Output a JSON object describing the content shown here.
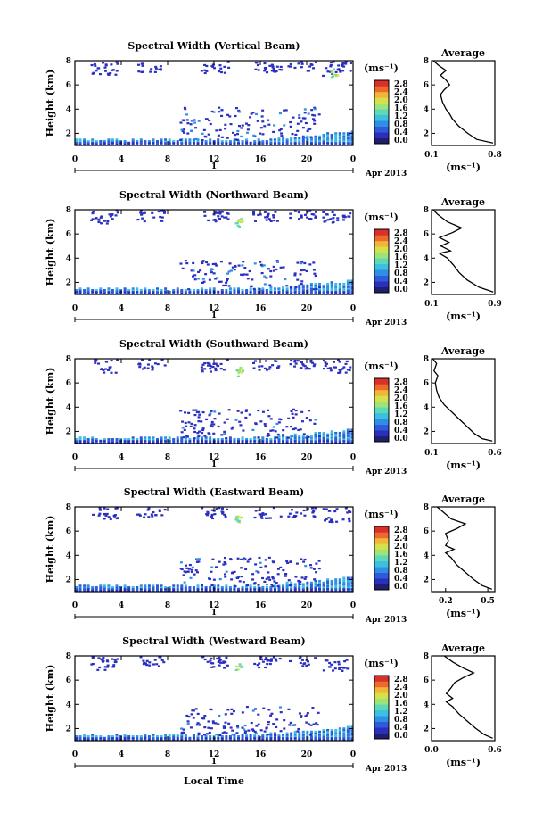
{
  "figure": {
    "xlabel": "Local Time",
    "day_label": "1",
    "month_label": "Apr 2013",
    "ylabel": "Height (km)",
    "unit_label": "(ms⁻¹)",
    "avg_unit_label": "(ms⁻¹)",
    "avg_title": "Average",
    "x_ticks": [
      "0",
      "4",
      "8",
      "12",
      "16",
      "20",
      "0"
    ],
    "y_ticks": [
      "2",
      "4",
      "6",
      "8"
    ],
    "colorbar_ticks": [
      "0.0",
      "0.4",
      "0.8",
      "1.2",
      "1.6",
      "2.0",
      "2.4",
      "2.8"
    ],
    "colorbar_colors": [
      "#1f1f6e",
      "#2b2fbf",
      "#2e5bd8",
      "#2f8fe6",
      "#3cc0e0",
      "#5fd8b8",
      "#9be37a",
      "#d6e04a",
      "#f2b53a",
      "#ec6a2c",
      "#d9302a"
    ]
  },
  "chart_data": [
    {
      "type": "heatmap",
      "title": "Spectral Width (Vertical Beam)",
      "xlabel": "Local Time",
      "ylabel": "Height (km)",
      "xlim": [
        0,
        24
      ],
      "ylim": [
        1,
        8
      ],
      "colorbar": {
        "label": "(ms⁻¹)",
        "range": [
          0.0,
          2.8
        ]
      },
      "average": {
        "title": "Average",
        "xlabel": "(ms⁻¹)",
        "xticks": [
          "0.1",
          "0.8"
        ],
        "xlim": [
          0.1,
          0.8
        ],
        "ylim": [
          1,
          8
        ],
        "profile": [
          [
            0.78,
            1.2
          ],
          [
            0.6,
            1.5
          ],
          [
            0.5,
            2.0
          ],
          [
            0.4,
            2.6
          ],
          [
            0.33,
            3.2
          ],
          [
            0.3,
            3.6
          ],
          [
            0.26,
            4.0
          ],
          [
            0.22,
            4.6
          ],
          [
            0.2,
            5.2
          ],
          [
            0.24,
            5.6
          ],
          [
            0.3,
            6.0
          ],
          [
            0.26,
            6.4
          ],
          [
            0.2,
            6.8
          ],
          [
            0.26,
            7.2
          ],
          [
            0.18,
            7.6
          ],
          [
            0.12,
            8.0
          ]
        ]
      }
    },
    {
      "type": "heatmap",
      "title": "Spectral Width (Northward Beam)",
      "xlabel": "Local Time",
      "ylabel": "Height (km)",
      "xlim": [
        0,
        24
      ],
      "ylim": [
        1,
        8
      ],
      "colorbar": {
        "label": "(ms⁻¹)",
        "range": [
          0.0,
          2.8
        ]
      },
      "average": {
        "title": "Average",
        "xlabel": "(ms⁻¹)",
        "xticks": [
          "0.1",
          "0.9"
        ],
        "xlim": [
          0.1,
          0.9
        ],
        "ylim": [
          1,
          8
        ],
        "profile": [
          [
            0.88,
            1.2
          ],
          [
            0.7,
            1.6
          ],
          [
            0.55,
            2.2
          ],
          [
            0.45,
            2.8
          ],
          [
            0.38,
            3.4
          ],
          [
            0.3,
            4.0
          ],
          [
            0.2,
            4.4
          ],
          [
            0.34,
            4.6
          ],
          [
            0.22,
            5.0
          ],
          [
            0.32,
            5.3
          ],
          [
            0.2,
            5.7
          ],
          [
            0.36,
            6.1
          ],
          [
            0.48,
            6.5
          ],
          [
            0.3,
            7.0
          ],
          [
            0.18,
            7.6
          ],
          [
            0.12,
            8.0
          ]
        ]
      }
    },
    {
      "type": "heatmap",
      "title": "Spectral Width (Southward Beam)",
      "xlabel": "Local Time",
      "ylabel": "Height (km)",
      "xlim": [
        0,
        24
      ],
      "ylim": [
        1,
        8
      ],
      "colorbar": {
        "label": "(ms⁻¹)",
        "range": [
          0.0,
          2.8
        ]
      },
      "average": {
        "title": "Average",
        "xlabel": "(ms⁻¹)",
        "xticks": [
          "0.1",
          "0.6"
        ],
        "xlim": [
          0.1,
          0.6
        ],
        "ylim": [
          1,
          8
        ],
        "profile": [
          [
            0.58,
            1.2
          ],
          [
            0.5,
            1.4
          ],
          [
            0.44,
            1.8
          ],
          [
            0.38,
            2.4
          ],
          [
            0.32,
            3.0
          ],
          [
            0.26,
            3.6
          ],
          [
            0.2,
            4.2
          ],
          [
            0.16,
            4.8
          ],
          [
            0.14,
            5.4
          ],
          [
            0.13,
            6.0
          ],
          [
            0.15,
            6.6
          ],
          [
            0.12,
            7.0
          ],
          [
            0.14,
            7.6
          ],
          [
            0.11,
            8.0
          ]
        ]
      }
    },
    {
      "type": "heatmap",
      "title": "Spectral Width (Eastward Beam)",
      "xlabel": "Local Time",
      "ylabel": "Height (km)",
      "xlim": [
        0,
        24
      ],
      "ylim": [
        1,
        8
      ],
      "colorbar": {
        "label": "(ms⁻¹)",
        "range": [
          0.0,
          2.8
        ]
      },
      "average": {
        "title": "Average",
        "xlabel": "(ms⁻¹)",
        "xticks": [
          "0.2",
          "0.5"
        ],
        "xlim": [
          0.1,
          0.55
        ],
        "ylim": [
          1,
          8
        ],
        "profile": [
          [
            0.53,
            1.2
          ],
          [
            0.46,
            1.5
          ],
          [
            0.4,
            2.0
          ],
          [
            0.34,
            2.6
          ],
          [
            0.28,
            3.2
          ],
          [
            0.24,
            3.8
          ],
          [
            0.2,
            4.2
          ],
          [
            0.26,
            4.5
          ],
          [
            0.2,
            4.8
          ],
          [
            0.22,
            5.2
          ],
          [
            0.2,
            5.8
          ],
          [
            0.28,
            6.2
          ],
          [
            0.34,
            6.6
          ],
          [
            0.24,
            7.0
          ],
          [
            0.18,
            7.6
          ],
          [
            0.14,
            8.0
          ]
        ]
      }
    },
    {
      "type": "heatmap",
      "title": "Spectral Width (Westward Beam)",
      "xlabel": "Local Time",
      "ylabel": "Height (km)",
      "xlim": [
        0,
        24
      ],
      "ylim": [
        1,
        8
      ],
      "colorbar": {
        "label": "(ms⁻¹)",
        "range": [
          0.0,
          2.8
        ]
      },
      "average": {
        "title": "Average",
        "xlabel": "(ms⁻¹)",
        "xticks": [
          "0.0",
          "0.6"
        ],
        "xlim": [
          0.0,
          0.6
        ],
        "ylim": [
          1,
          8
        ],
        "profile": [
          [
            0.58,
            1.2
          ],
          [
            0.5,
            1.5
          ],
          [
            0.42,
            2.0
          ],
          [
            0.34,
            2.6
          ],
          [
            0.26,
            3.2
          ],
          [
            0.2,
            3.8
          ],
          [
            0.14,
            4.2
          ],
          [
            0.2,
            4.5
          ],
          [
            0.14,
            4.9
          ],
          [
            0.18,
            5.3
          ],
          [
            0.22,
            5.8
          ],
          [
            0.3,
            6.2
          ],
          [
            0.4,
            6.6
          ],
          [
            0.3,
            7.0
          ],
          [
            0.2,
            7.5
          ],
          [
            0.12,
            8.0
          ]
        ]
      }
    }
  ]
}
